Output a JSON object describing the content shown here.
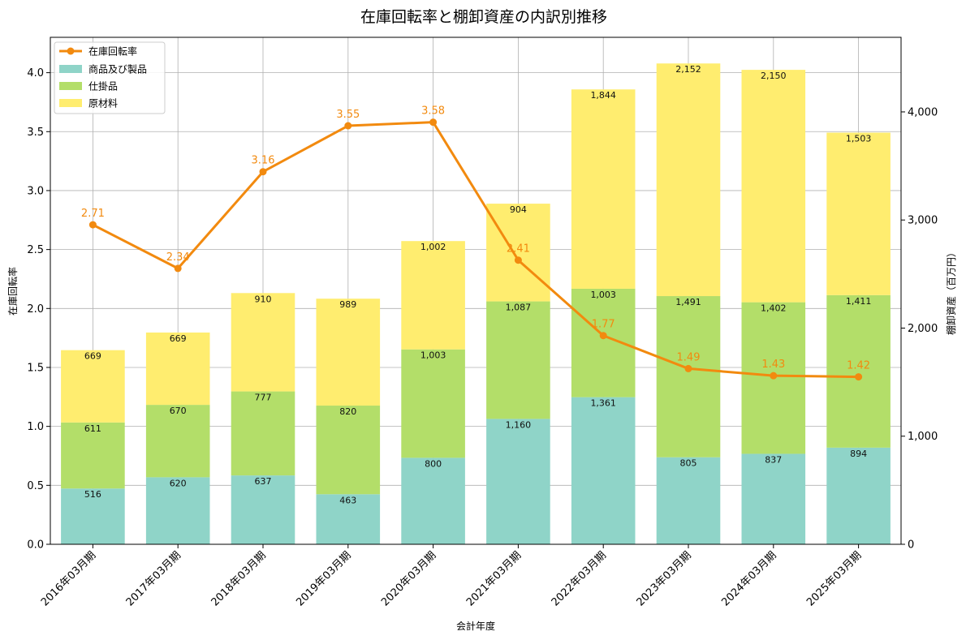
{
  "chart_data": {
    "type": "bar",
    "title": "在庫回転率と棚卸資産の内訳別推移",
    "xlabel": "会計年度",
    "ylabel_left": "在庫回転率",
    "ylabel_right": "棚卸資産（百万円）",
    "categories": [
      "2016年03月期",
      "2017年03月期",
      "2018年03月期",
      "2019年03月期",
      "2020年03月期",
      "2021年03月期",
      "2022年03月期",
      "2023年03月期",
      "2024年03月期",
      "2025年03月期"
    ],
    "stacked_series": [
      {
        "name": "商品及び製品",
        "color": "#8fd4c8",
        "values": [
          516,
          620,
          637,
          463,
          800,
          1160,
          1361,
          805,
          837,
          894
        ],
        "labels": [
          "516",
          "620",
          "637",
          "463",
          "800",
          "1,160",
          "1,361",
          "805",
          "837",
          "894"
        ]
      },
      {
        "name": "仕掛品",
        "color": "#b3de69",
        "values": [
          611,
          670,
          777,
          820,
          1003,
          1087,
          1003,
          1491,
          1402,
          1411
        ],
        "labels": [
          "611",
          "670",
          "777",
          "820",
          "1,003",
          "1,087",
          "1,003",
          "1,491",
          "1,402",
          "1,411"
        ]
      },
      {
        "name": "原材料",
        "color": "#ffed6f",
        "values": [
          669,
          669,
          910,
          989,
          1002,
          904,
          1844,
          2152,
          2150,
          1503
        ],
        "labels": [
          "669",
          "669",
          "910",
          "989",
          "1,002",
          "904",
          "1,844",
          "2,152",
          "2,150",
          "1,503"
        ]
      }
    ],
    "line_series": {
      "name": "在庫回転率",
      "color": "#f28a0f",
      "values": [
        2.71,
        2.34,
        3.16,
        3.55,
        3.58,
        2.41,
        1.77,
        1.49,
        1.43,
        1.42
      ],
      "labels": [
        "2.71",
        "2.34",
        "3.16",
        "3.55",
        "3.58",
        "2.41",
        "1.77",
        "1.49",
        "1.43",
        "1.42"
      ]
    },
    "left_axis": {
      "min": 0,
      "max": 4.3,
      "ticks": [
        0,
        0.5,
        1.0,
        1.5,
        2.0,
        2.5,
        3.0,
        3.5,
        4.0
      ],
      "tick_labels": [
        "0.0",
        "0.5",
        "1.0",
        "1.5",
        "2.0",
        "2.5",
        "3.0",
        "3.5",
        "4.0"
      ]
    },
    "right_axis": {
      "min": 0,
      "max": 4690,
      "ticks": [
        0,
        1000,
        2000,
        3000,
        4000
      ],
      "tick_labels": [
        "0",
        "1,000",
        "2,000",
        "3,000",
        "4,000"
      ]
    },
    "grid": true,
    "legend_position": "top-left",
    "legend": [
      "在庫回転率",
      "商品及び製品",
      "仕掛品",
      "原材料"
    ]
  }
}
